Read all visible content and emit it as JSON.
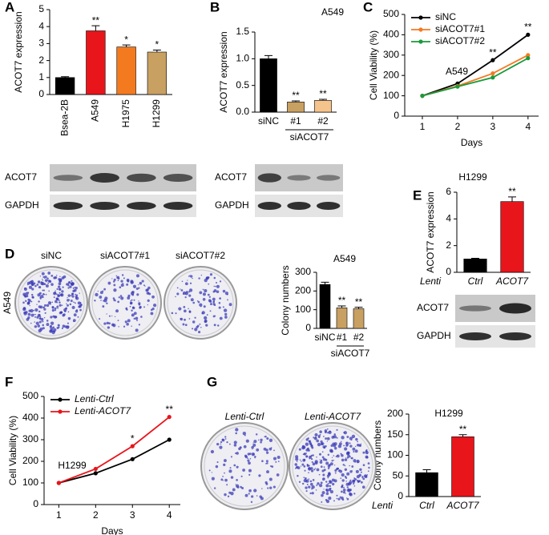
{
  "chart_data": [
    {
      "label": "A",
      "type": "bar",
      "y_label": "ACOT7 expression",
      "categories": [
        "Bsea-2B",
        "A549",
        "H1975",
        "H1299"
      ],
      "values": [
        1.0,
        3.75,
        2.8,
        2.5
      ],
      "errors": [
        0.05,
        0.3,
        0.12,
        0.12
      ],
      "significance": [
        null,
        "**",
        "*",
        "*"
      ],
      "colors": [
        "#000000",
        "#e8151b",
        "#f47a20",
        "#c8a062"
      ],
      "ylim": [
        0,
        5
      ],
      "yticks": [
        0,
        1,
        2,
        3,
        4,
        5
      ],
      "rotate_labels": true,
      "blot_rows": [
        "ACOT7",
        "GAPDH"
      ]
    },
    {
      "label": "B",
      "type": "bar",
      "title": "A549",
      "y_label": "ACOT7 expression",
      "categories": [
        "siNC",
        "#1",
        "#2"
      ],
      "group_label": "siACOT7",
      "values": [
        1.0,
        0.19,
        0.22
      ],
      "errors": [
        0.06,
        0.02,
        0.02
      ],
      "significance": [
        null,
        "**",
        "**"
      ],
      "colors": [
        "#000000",
        "#c8a062",
        "#f5c48c"
      ],
      "ylim": [
        0,
        1.5
      ],
      "yticks": [
        {
          "value": 0,
          "label": "0.0"
        },
        0.5,
        {
          "value": 1,
          "label": "1.0"
        },
        1.5
      ],
      "blot_rows": [
        "ACOT7",
        "GAPDH"
      ]
    },
    {
      "label": "C",
      "type": "line",
      "annotation": "A549",
      "x_label": "Days",
      "y_label": "Cell Viability (%)",
      "x": [
        1,
        2,
        3,
        4
      ],
      "series": [
        {
          "name": "siNC",
          "color": "#000000",
          "values": [
            100,
            160,
            275,
            400
          ]
        },
        {
          "name": "siACOT7#1",
          "color": "#f47a20",
          "values": [
            100,
            148,
            210,
            300
          ]
        },
        {
          "name": "siACOT7#2",
          "color": "#1a9a3a",
          "values": [
            100,
            145,
            190,
            285
          ]
        }
      ],
      "significance": [
        null,
        null,
        "**",
        "**"
      ],
      "xlim": [
        0.5,
        4.3
      ],
      "xticks": [
        1,
        2,
        3,
        4
      ],
      "ylim": [
        0,
        500
      ],
      "yticks": [
        0,
        100,
        200,
        300,
        400,
        500
      ]
    },
    {
      "label": "D",
      "type": "bar",
      "title": "A549",
      "y_label": "Colony numbers",
      "categories": [
        "siNC",
        "#1",
        "#2"
      ],
      "group_label": "siACOT7",
      "values": [
        235,
        110,
        105
      ],
      "errors": [
        12,
        10,
        8
      ],
      "significance": [
        null,
        "**",
        "**"
      ],
      "colors": [
        "#000000",
        "#c8a062",
        "#c8a062"
      ],
      "ylim": [
        0,
        300
      ],
      "yticks": [
        0,
        100,
        200,
        300
      ],
      "dish_row_label": "A549",
      "dish_labels": [
        "siNC",
        "siACOT7#1",
        "siACOT7#2"
      ]
    },
    {
      "label": "E",
      "type": "bar",
      "title": "H1299",
      "y_label": "ACOT7 expression",
      "axis_prefix": "Lenti",
      "italic": true,
      "categories": [
        "Ctrl",
        "ACOT7"
      ],
      "values": [
        1.0,
        5.3
      ],
      "errors": [
        0.05,
        0.35
      ],
      "significance": [
        null,
        "**"
      ],
      "colors": [
        "#000000",
        "#e8151b"
      ],
      "ylim": [
        0,
        6
      ],
      "yticks": [
        0,
        2,
        4,
        6
      ],
      "blot_rows": [
        "ACOT7",
        "GAPDH"
      ]
    },
    {
      "label": "F",
      "type": "line",
      "annotation": "H1299",
      "italic": true,
      "x_label": "Days",
      "y_label": "Cell Viability (%)",
      "x": [
        1,
        2,
        3,
        4
      ],
      "series": [
        {
          "name": "Lenti-Ctrl",
          "color": "#000000",
          "values": [
            100,
            145,
            210,
            300
          ]
        },
        {
          "name": "Lenti-ACOT7",
          "color": "#e8151b",
          "values": [
            100,
            165,
            270,
            405
          ]
        }
      ],
      "significance": [
        null,
        null,
        "*",
        "**"
      ],
      "xlim": [
        0.6,
        4.3
      ],
      "xticks": [
        1,
        2,
        3,
        4
      ],
      "ylim": [
        0,
        500
      ],
      "yticks": [
        0,
        100,
        200,
        300,
        400,
        500
      ]
    },
    {
      "label": "G",
      "type": "bar",
      "title": "H1299",
      "y_label": "Colony numbers",
      "axis_prefix": "Lenti",
      "italic": true,
      "categories": [
        "Ctrl",
        "ACOT7"
      ],
      "values": [
        58,
        145
      ],
      "errors": [
        7,
        5
      ],
      "significance": [
        null,
        "**"
      ],
      "colors": [
        "#000000",
        "#e8151b"
      ],
      "ylim": [
        0,
        200
      ],
      "yticks": [
        0,
        50,
        100,
        150,
        200
      ],
      "dish_labels": [
        "Lenti-Ctrl",
        "Lenti-ACOT7"
      ]
    }
  ]
}
